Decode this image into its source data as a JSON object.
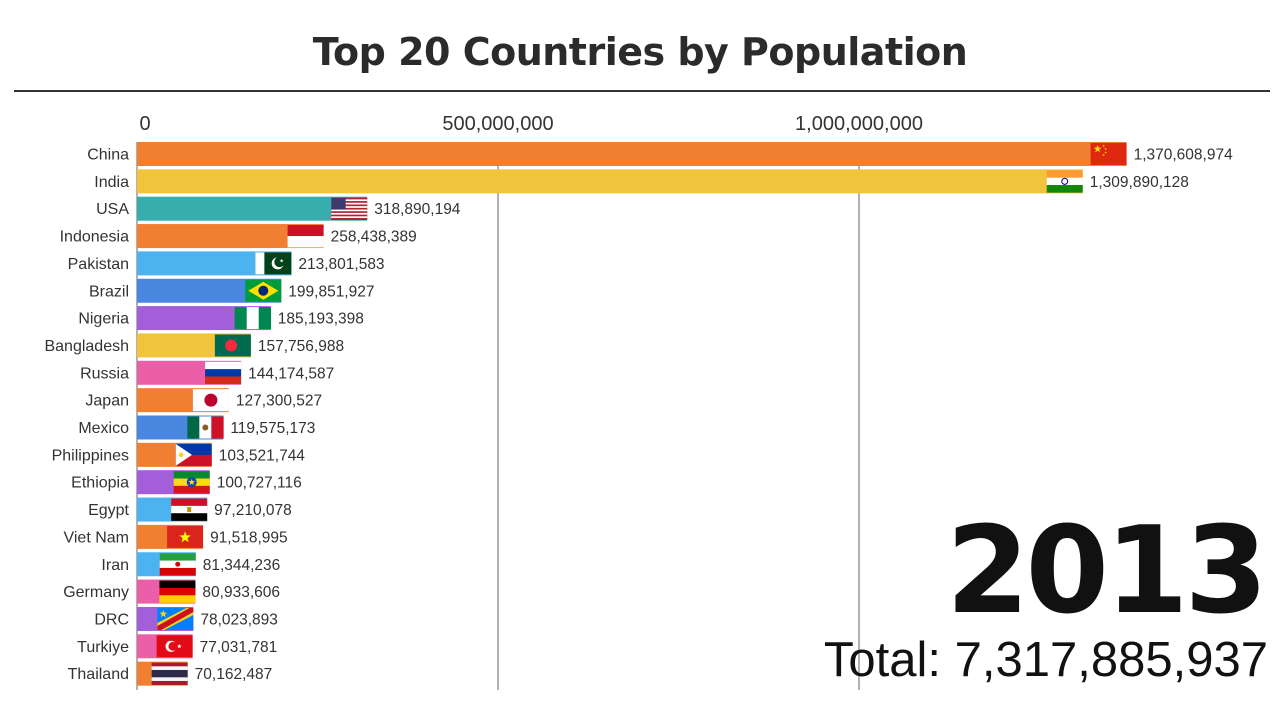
{
  "title": "Top 20 Countries by Population",
  "year": "2013",
  "total_label": "Total: 7,317,885,937",
  "chart_data": {
    "type": "bar",
    "orientation": "horizontal",
    "title": "Top 20 Countries by Population",
    "xlim": [
      0,
      1400000000
    ],
    "xticks": [
      0,
      500000000,
      1000000000
    ],
    "xtick_labels": [
      "0",
      "500,000,000",
      "1,000,000,000"
    ],
    "grid": "vertical lines at ticks",
    "categories": [
      "China",
      "India",
      "USA",
      "Indonesia",
      "Pakistan",
      "Brazil",
      "Nigeria",
      "Bangladesh",
      "Russia",
      "Japan",
      "Mexico",
      "Philippines",
      "Ethiopia",
      "Egypt",
      "Viet Nam",
      "Iran",
      "Germany",
      "DRC",
      "Turkiye",
      "Thailand"
    ],
    "values": [
      1370608974,
      1309890128,
      318890194,
      258438389,
      213801583,
      199851927,
      185193398,
      157756988,
      144174587,
      127300527,
      119575173,
      103521744,
      100727116,
      97210078,
      91518995,
      81344236,
      80933606,
      78023893,
      77031781,
      70162487
    ],
    "value_labels": [
      "1,370,608,974",
      "1,309,890,128",
      "318,890,194",
      "258,438,389",
      "213,801,583",
      "199,851,927",
      "185,193,398",
      "157,756,988",
      "144,174,587",
      "127,300,527",
      "119,575,173",
      "103,521,744",
      "100,727,116",
      "97,210,078",
      "91,518,995",
      "81,344,236",
      "80,933,606",
      "78,023,893",
      "77,031,781",
      "70,162,487"
    ],
    "colors": [
      "#f07f32",
      "#f2c43d",
      "#37adad",
      "#f07f32",
      "#4db3f0",
      "#4a87e0",
      "#a25fd9",
      "#f2c43d",
      "#ea5fa8",
      "#f07f32",
      "#4a87e0",
      "#f07f32",
      "#a25fd9",
      "#4db3f0",
      "#f07f32",
      "#4db3f0",
      "#ea5fa8",
      "#a25fd9",
      "#ea5fa8",
      "#f07f32"
    ],
    "flags": [
      "china-flag",
      "india-flag",
      "usa-flag",
      "indonesia-flag",
      "pakistan-flag",
      "brazil-flag",
      "nigeria-flag",
      "bangladesh-flag",
      "russia-flag",
      "japan-flag",
      "mexico-flag",
      "philippines-flag",
      "ethiopia-flag",
      "egypt-flag",
      "vietnam-flag",
      "iran-flag",
      "germany-flag",
      "drc-flag",
      "turkiye-flag",
      "thailand-flag"
    ]
  }
}
